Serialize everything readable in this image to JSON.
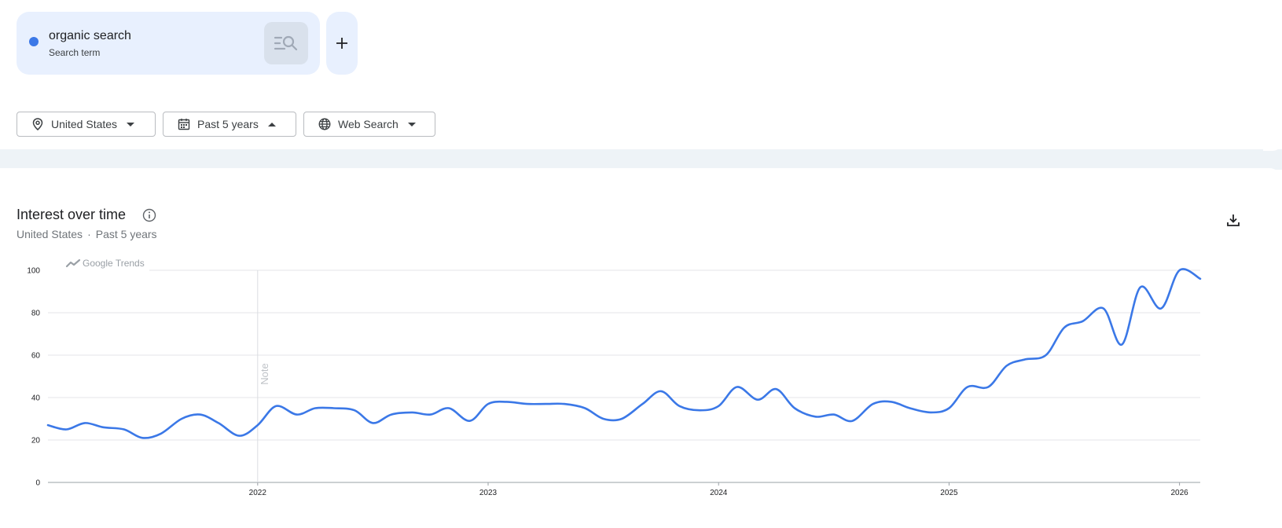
{
  "search_term": {
    "name": "organic search",
    "type_label": "Search term",
    "color": "#3b78e7"
  },
  "filters": {
    "location": "United States",
    "time_range": "Past 5 years",
    "property": "Web Search"
  },
  "section": {
    "title": "Interest over time",
    "subtitle_location": "United States",
    "subtitle_separator": "·",
    "subtitle_range": "Past 5 years"
  },
  "icons": [
    "location-pin-icon",
    "calendar-icon",
    "globe-icon",
    "compare-icon",
    "add-icon",
    "info-icon",
    "download-icon",
    "trends-logo-icon"
  ],
  "chart_data": {
    "type": "line",
    "brand_label": "Google Trends",
    "annotation": "Note",
    "annotation_x": 2022.0,
    "ylim": [
      0,
      100
    ],
    "yticks": [
      0,
      20,
      40,
      60,
      80,
      100
    ],
    "xlim": [
      2021.09,
      2026.09
    ],
    "xticks": [
      2022,
      2023,
      2024,
      2025,
      2026
    ],
    "grid": true,
    "series": [
      {
        "name": "organic search",
        "color": "#3b78e7",
        "x": [
          2021.09,
          2021.17,
          2021.25,
          2021.33,
          2021.42,
          2021.5,
          2021.58,
          2021.67,
          2021.75,
          2021.83,
          2021.92,
          2022.0,
          2022.08,
          2022.17,
          2022.25,
          2022.33,
          2022.42,
          2022.5,
          2022.58,
          2022.67,
          2022.75,
          2022.83,
          2022.92,
          2023.0,
          2023.08,
          2023.17,
          2023.25,
          2023.33,
          2023.42,
          2023.5,
          2023.58,
          2023.67,
          2023.75,
          2023.83,
          2023.92,
          2024.0,
          2024.08,
          2024.17,
          2024.25,
          2024.33,
          2024.42,
          2024.5,
          2024.58,
          2024.67,
          2024.75,
          2024.83,
          2024.92,
          2025.0,
          2025.08,
          2025.17,
          2025.25,
          2025.33,
          2025.42,
          2025.5,
          2025.58,
          2025.67,
          2025.75,
          2025.83,
          2025.92,
          2026.0,
          2026.09
        ],
        "values": [
          27,
          25,
          28,
          26,
          25,
          21,
          23,
          30,
          32,
          28,
          22,
          27,
          36,
          32,
          35,
          35,
          34,
          28,
          32,
          33,
          32,
          35,
          29,
          37,
          38,
          37,
          37,
          37,
          35,
          30,
          30,
          37,
          43,
          36,
          34,
          36,
          45,
          39,
          44,
          35,
          31,
          32,
          29,
          37,
          38,
          35,
          33,
          35,
          45,
          45,
          55,
          58,
          60,
          73,
          76,
          82,
          65,
          92,
          82,
          100,
          96
        ]
      }
    ]
  }
}
